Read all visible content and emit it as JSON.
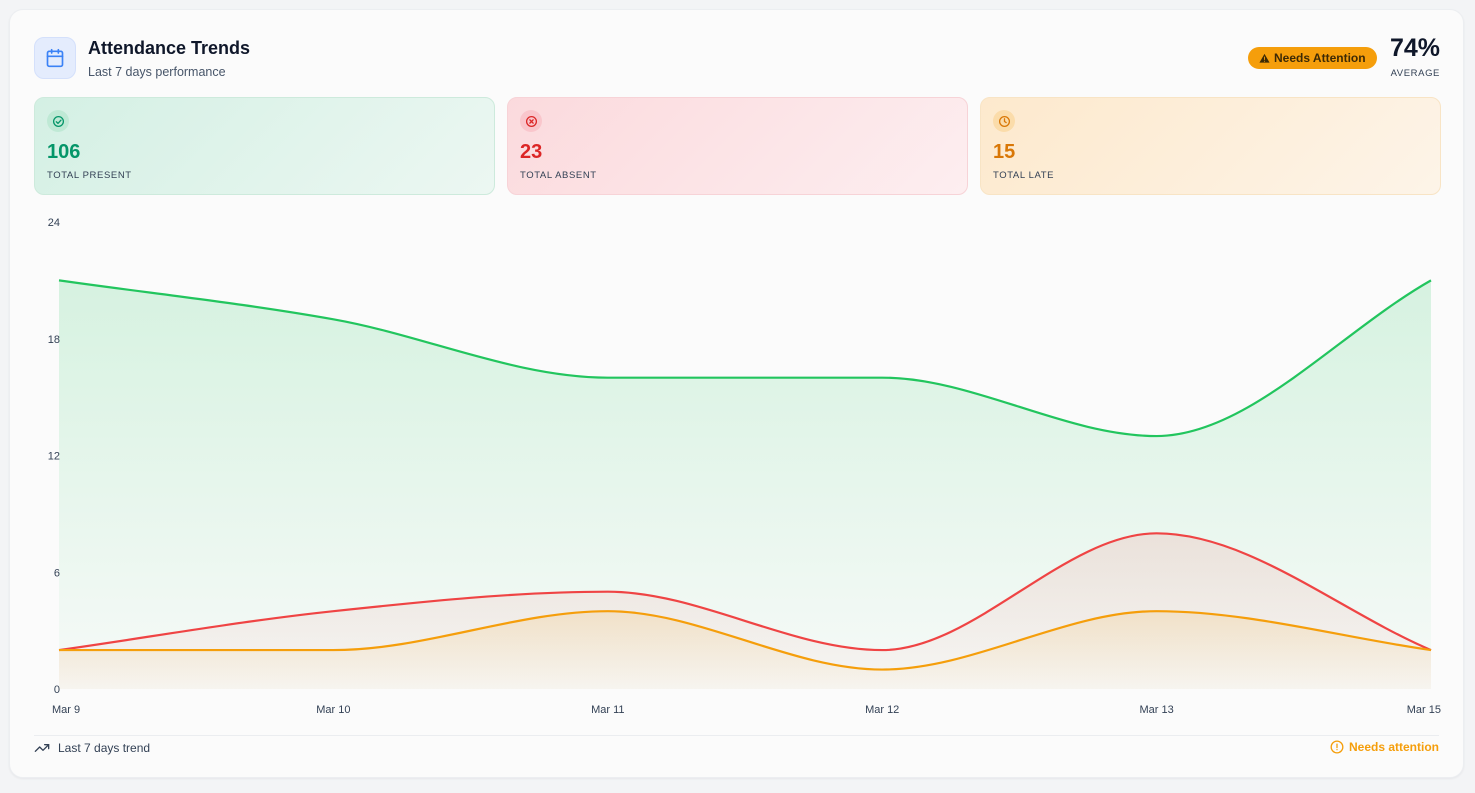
{
  "header": {
    "title": "Attendance Trends",
    "subtitle": "Last 7 days performance",
    "badge": "Needs Attention",
    "badge_icon": "warning-icon",
    "average_value": "74%",
    "average_label": "AVERAGE",
    "icon": "calendar-icon"
  },
  "stats": [
    {
      "value": "106",
      "label": "TOTAL PRESENT",
      "icon": "check-circle-icon",
      "color": "#059669"
    },
    {
      "value": "23",
      "label": "TOTAL ABSENT",
      "icon": "x-circle-icon",
      "color": "#dc2626"
    },
    {
      "value": "15",
      "label": "TOTAL LATE",
      "icon": "clock-icon",
      "color": "#d97706"
    }
  ],
  "footer": {
    "left_text": "Last 7 days trend",
    "left_icon": "trending-up-icon",
    "right_text": "Needs attention",
    "right_icon": "alert-circle-icon"
  },
  "chart_data": {
    "type": "area",
    "categories": [
      "Mar 9",
      "Mar 10",
      "Mar 11",
      "Mar 12",
      "Mar 13",
      "Mar 15"
    ],
    "ylim": [
      0,
      24
    ],
    "yticks": [
      "0",
      "6",
      "12",
      "18",
      "24"
    ],
    "grid": false,
    "series": [
      {
        "values": [
          21,
          19,
          16,
          16,
          13,
          21
        ],
        "color": "#22c55e"
      },
      {
        "values": [
          2,
          4,
          5,
          2,
          8,
          2
        ],
        "color": "#ef4444"
      },
      {
        "values": [
          2,
          2,
          4,
          1,
          4,
          2
        ],
        "color": "#f59e0b"
      }
    ]
  }
}
